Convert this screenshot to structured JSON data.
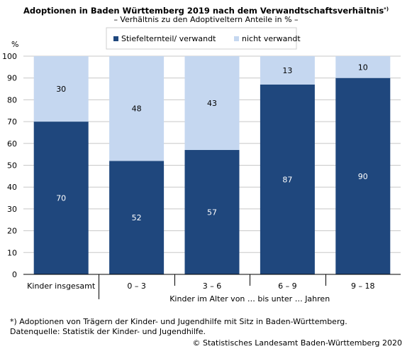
{
  "chart_data": {
    "type": "bar",
    "stacked": true,
    "title": "Adoptionen in Baden Württemberg 2019 nach dem Verwandtschaftsverhältnis",
    "title_mark": "*)",
    "subtitle": "– Verhältnis zu den Adoptiveltern Anteile in % –",
    "ylabel": "%",
    "ylim": [
      0,
      100
    ],
    "yticks": [
      0,
      10,
      20,
      30,
      40,
      50,
      60,
      70,
      80,
      90,
      100
    ],
    "grid": true,
    "legend_position": "top",
    "categories": [
      "Kinder insgesamt",
      "0 – 3",
      "3 – 6",
      "6 – 9",
      "9  – 18"
    ],
    "group_label": "Kinder im Alter von … bis unter … Jahren",
    "series": [
      {
        "name": "Stiefelternteil/ verwandt",
        "color": "#1f477d",
        "label_color": "#ffffff",
        "values": [
          70,
          52,
          57,
          87,
          90
        ]
      },
      {
        "name": "nicht verwandt",
        "color": "#c5d7f0",
        "label_color": "#000000",
        "values": [
          30,
          48,
          43,
          13,
          10
        ]
      }
    ]
  },
  "footnote": "*) Adoptionen von Trägern der Kinder- und Jugendhilfe mit Sitz in Baden-Württemberg.",
  "source": "Datenquelle: Statistik der Kinder- und Jugendhilfe.",
  "copyright": "© Statistisches Landesamt Baden-Württemberg 2020"
}
